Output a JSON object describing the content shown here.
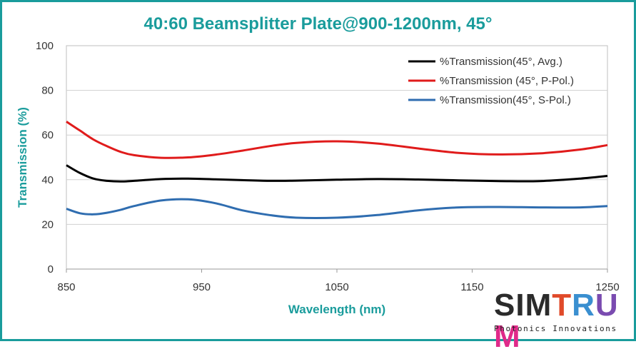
{
  "chart_data": {
    "type": "line",
    "title": "40:60 Beamsplitter Plate@900-1200nm, 45°",
    "xlabel": "Wavelength (nm)",
    "ylabel": "Transmission (%)",
    "xlim": [
      850,
      1250
    ],
    "ylim": [
      0,
      100
    ],
    "xticks": [
      850,
      950,
      1050,
      1150,
      1250
    ],
    "yticks": [
      0,
      20,
      40,
      60,
      80,
      100
    ],
    "grid": "horizontal",
    "legend_position": "top-right",
    "series": [
      {
        "name": "%Transmission(45°, Avg.)",
        "color": "#000000",
        "x": [
          850,
          860,
          870,
          880,
          890,
          900,
          920,
          940,
          960,
          980,
          1000,
          1020,
          1050,
          1080,
          1110,
          1140,
          1170,
          1200,
          1230,
          1250
        ],
        "values": [
          46.5,
          43,
          40.5,
          39.5,
          39.2,
          39.5,
          40.3,
          40.5,
          40.2,
          39.8,
          39.5,
          39.6,
          40,
          40.3,
          40.1,
          39.7,
          39.4,
          39.4,
          40.5,
          41.7
        ]
      },
      {
        "name": "%Transmission (45°, P-Pol.)",
        "color": "#e01b1b",
        "x": [
          850,
          860,
          870,
          880,
          890,
          900,
          920,
          940,
          960,
          980,
          1000,
          1020,
          1050,
          1080,
          1110,
          1140,
          1170,
          1200,
          1230,
          1250
        ],
        "values": [
          66,
          62,
          58,
          55,
          52.5,
          51,
          49.8,
          50,
          51.2,
          53,
          55,
          56.5,
          57.2,
          56.2,
          54,
          52,
          51.3,
          51.8,
          53.5,
          55.5
        ]
      },
      {
        "name": "%Transmission(45°, S-Pol.)",
        "color": "#2f6db0",
        "x": [
          850,
          860,
          870,
          880,
          890,
          900,
          920,
          940,
          960,
          980,
          1000,
          1020,
          1050,
          1080,
          1110,
          1140,
          1170,
          1200,
          1230,
          1250
        ],
        "values": [
          27,
          25,
          24.5,
          25.2,
          26.5,
          28.2,
          30.7,
          31.2,
          29.5,
          26.3,
          24.2,
          23,
          23,
          24.2,
          26.3,
          27.6,
          27.8,
          27.6,
          27.6,
          28.2
        ]
      }
    ]
  },
  "logo": {
    "letters": [
      "S",
      "I",
      "M",
      "T",
      "R",
      "U",
      "M"
    ],
    "letter_colors": [
      "#2b2b2b",
      "#2b2b2b",
      "#2b2b2b",
      "#e04a2a",
      "#3a8fd0",
      "#7a4bb0",
      "#e02a8a"
    ],
    "tagline": "Photonics Innovations"
  }
}
